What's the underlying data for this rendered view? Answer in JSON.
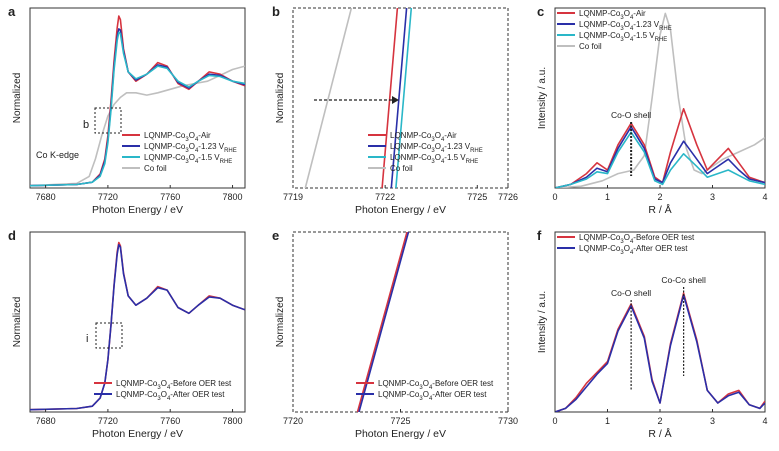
{
  "colors": {
    "red": "#d6343f",
    "blue": "#2a2fa8",
    "cyan": "#2ab7c8",
    "gray": "#bfbfbf",
    "axis": "#333333"
  },
  "chart_data": [
    {
      "panel": "a",
      "type": "line",
      "xlabel": "Photon Energy / eV",
      "ylabel": "Normalized",
      "xlim": [
        7670,
        7808
      ],
      "ylim": [
        0,
        1.55
      ],
      "xticks": [
        "7680",
        "7720",
        "7760",
        "7800"
      ],
      "annotations": {
        "edge": "Co K-edge",
        "box": "b"
      },
      "legend": [
        "LQNMP-Co3O4-Air",
        "LQNMP-Co3O4-1.23 VRHE",
        "LQNMP-Co3O4-1.5 VRHE",
        "Co foil"
      ],
      "series": [
        {
          "name": "LQNMP-Co3O4-Air",
          "color": "red",
          "x": [
            7670,
            7700,
            7710,
            7715,
            7718,
            7720,
            7722,
            7724,
            7726,
            7727,
            7728,
            7730,
            7733,
            7738,
            7745,
            7752,
            7758,
            7765,
            7772,
            7778,
            7785,
            7792,
            7800,
            7808
          ],
          "y": [
            0.02,
            0.03,
            0.05,
            0.12,
            0.25,
            0.45,
            0.75,
            1.1,
            1.38,
            1.48,
            1.45,
            1.2,
            1.0,
            0.92,
            0.98,
            1.08,
            1.05,
            0.9,
            0.85,
            0.92,
            1.0,
            0.98,
            0.92,
            0.88
          ]
        },
        {
          "name": "LQNMP-Co3O4-1.23 VRHE",
          "color": "blue",
          "x": [
            7670,
            7700,
            7710,
            7715,
            7718,
            7720,
            7722,
            7724,
            7726,
            7727,
            7728,
            7730,
            7733,
            7738,
            7745,
            7752,
            7758,
            7765,
            7772,
            7778,
            7785,
            7792,
            7800,
            7808
          ],
          "y": [
            0.02,
            0.03,
            0.05,
            0.11,
            0.23,
            0.41,
            0.7,
            1.05,
            1.3,
            1.37,
            1.36,
            1.18,
            1.0,
            0.93,
            0.98,
            1.06,
            1.04,
            0.91,
            0.86,
            0.92,
            0.98,
            0.97,
            0.92,
            0.89
          ]
        },
        {
          "name": "LQNMP-Co3O4-1.5 VRHE",
          "color": "cyan",
          "x": [
            7670,
            7700,
            7710,
            7715,
            7718,
            7720,
            7722,
            7724,
            7726,
            7727,
            7728,
            7730,
            7733,
            7738,
            7745,
            7752,
            7758,
            7765,
            7772,
            7778,
            7785,
            7792,
            7800,
            7808
          ],
          "y": [
            0.02,
            0.03,
            0.05,
            0.1,
            0.21,
            0.39,
            0.67,
            1.02,
            1.27,
            1.34,
            1.33,
            1.16,
            1.0,
            0.94,
            0.98,
            1.05,
            1.03,
            0.92,
            0.87,
            0.92,
            0.97,
            0.96,
            0.92,
            0.9
          ]
        },
        {
          "name": "Co foil",
          "color": "gray",
          "x": [
            7670,
            7700,
            7708,
            7712,
            7716,
            7720,
            7724,
            7728,
            7732,
            7738,
            7745,
            7752,
            7760,
            7768,
            7776,
            7784,
            7792,
            7800,
            7808
          ],
          "y": [
            0.02,
            0.04,
            0.1,
            0.25,
            0.45,
            0.62,
            0.72,
            0.78,
            0.82,
            0.82,
            0.8,
            0.82,
            0.85,
            0.88,
            0.9,
            0.92,
            0.97,
            1.02,
            1.05
          ]
        }
      ]
    },
    {
      "panel": "b",
      "type": "line",
      "xlabel": "Photon Energy / eV",
      "ylabel": "Normalized",
      "xlim": [
        7719,
        7726
      ],
      "ylim": [
        0,
        1
      ],
      "xticks": [
        "7719",
        "7722",
        "7725",
        "7726"
      ],
      "legend": [
        "LQNMP-Co3O4-Air",
        "LQNMP-Co3O4-1.23 VRHE",
        "LQNMP-Co3O4-1.5 VRHE",
        "Co foil"
      ],
      "series": [
        {
          "name": "LQNMP-Co3O4-Air",
          "color": "red",
          "x": [
            7721.9,
            7722.4
          ],
          "y": [
            0.0,
            1.0
          ]
        },
        {
          "name": "LQNMP-Co3O4-1.23 VRHE",
          "color": "blue",
          "x": [
            7722.2,
            7722.7
          ],
          "y": [
            0.0,
            1.0
          ]
        },
        {
          "name": "LQNMP-Co3O4-1.5 VRHE",
          "color": "cyan",
          "x": [
            7722.35,
            7722.85
          ],
          "y": [
            0.0,
            1.0
          ]
        },
        {
          "name": "Co foil",
          "color": "gray",
          "x": [
            7719.4,
            7720.9
          ],
          "y": [
            0.0,
            1.0
          ]
        }
      ]
    },
    {
      "panel": "c",
      "type": "line",
      "xlabel": "R / Å",
      "ylabel": "Intensity / a.u.",
      "xlim": [
        0,
        4
      ],
      "ylim": [
        0,
        1
      ],
      "xticks": [
        "0",
        "1",
        "2",
        "3",
        "4"
      ],
      "annotations": {
        "shell": "Co-O shell"
      },
      "legend": [
        "LQNMP-Co3O4-Air",
        "LQNMP-Co3O4-1.23 VRHE",
        "LQNMP-Co3O4-1.5 VRHE",
        "Co foil"
      ],
      "series": [
        {
          "name": "LQNMP-Co3O4-Air",
          "color": "red",
          "x": [
            0,
            0.3,
            0.6,
            0.8,
            1.0,
            1.2,
            1.45,
            1.7,
            1.9,
            2.05,
            2.2,
            2.45,
            2.7,
            2.9,
            3.1,
            3.3,
            3.5,
            3.7,
            4.0
          ],
          "y": [
            0.0,
            0.02,
            0.08,
            0.14,
            0.1,
            0.24,
            0.36,
            0.24,
            0.06,
            0.03,
            0.2,
            0.44,
            0.24,
            0.1,
            0.16,
            0.22,
            0.14,
            0.06,
            0.03
          ]
        },
        {
          "name": "LQNMP-Co3O4-1.23 VRHE",
          "color": "blue",
          "x": [
            0,
            0.3,
            0.6,
            0.8,
            1.0,
            1.2,
            1.45,
            1.7,
            1.9,
            2.05,
            2.2,
            2.45,
            2.7,
            2.9,
            3.1,
            3.3,
            3.5,
            3.7,
            4.0
          ],
          "y": [
            0.0,
            0.02,
            0.06,
            0.11,
            0.09,
            0.22,
            0.34,
            0.22,
            0.05,
            0.03,
            0.14,
            0.26,
            0.16,
            0.08,
            0.12,
            0.16,
            0.1,
            0.05,
            0.03
          ]
        },
        {
          "name": "LQNMP-Co3O4-1.5 VRHE",
          "color": "cyan",
          "x": [
            0,
            0.3,
            0.6,
            0.8,
            1.0,
            1.2,
            1.45,
            1.7,
            1.9,
            2.05,
            2.2,
            2.45,
            2.7,
            2.9,
            3.1,
            3.3,
            3.5,
            3.7,
            4.0
          ],
          "y": [
            0.0,
            0.02,
            0.05,
            0.09,
            0.08,
            0.2,
            0.31,
            0.2,
            0.04,
            0.02,
            0.1,
            0.19,
            0.12,
            0.06,
            0.08,
            0.1,
            0.07,
            0.04,
            0.02
          ]
        },
        {
          "name": "Co foil",
          "color": "gray",
          "x": [
            0,
            0.5,
            0.9,
            1.2,
            1.5,
            1.7,
            1.85,
            2.0,
            2.1,
            2.2,
            2.35,
            2.5,
            2.65,
            2.8,
            3.0,
            3.2,
            3.5,
            3.8,
            4.0
          ],
          "y": [
            0.0,
            0.01,
            0.04,
            0.08,
            0.1,
            0.18,
            0.5,
            0.85,
            0.97,
            0.88,
            0.5,
            0.22,
            0.1,
            0.08,
            0.12,
            0.16,
            0.2,
            0.24,
            0.28
          ]
        }
      ]
    },
    {
      "panel": "d",
      "type": "line",
      "xlabel": "Photon Energy / eV",
      "ylabel": "Normalized",
      "xlim": [
        7670,
        7808
      ],
      "ylim": [
        0,
        1.55
      ],
      "xticks": [
        "7680",
        "7720",
        "7760",
        "7800"
      ],
      "annotations": {
        "box": "i"
      },
      "legend": [
        "LQNMP-Co3O4-Before OER test",
        "LQNMP-Co3O4-After OER test"
      ],
      "series": [
        {
          "name": "LQNMP-Co3O4-Before OER test",
          "color": "red",
          "x": [
            7670,
            7700,
            7710,
            7715,
            7718,
            7720,
            7722,
            7724,
            7726,
            7727,
            7728,
            7730,
            7733,
            7738,
            7745,
            7752,
            7758,
            7765,
            7772,
            7778,
            7785,
            7792,
            7800,
            7808
          ],
          "y": [
            0.02,
            0.03,
            0.05,
            0.12,
            0.25,
            0.45,
            0.75,
            1.1,
            1.38,
            1.46,
            1.43,
            1.2,
            1.0,
            0.92,
            0.98,
            1.08,
            1.05,
            0.9,
            0.85,
            0.92,
            1.0,
            0.98,
            0.92,
            0.88
          ]
        },
        {
          "name": "LQNMP-Co3O4-After OER test",
          "color": "blue",
          "x": [
            7670,
            7700,
            7710,
            7715,
            7718,
            7720,
            7722,
            7724,
            7726,
            7727,
            7728,
            7730,
            7733,
            7738,
            7745,
            7752,
            7758,
            7765,
            7772,
            7778,
            7785,
            7792,
            7800,
            7808
          ],
          "y": [
            0.02,
            0.03,
            0.05,
            0.12,
            0.25,
            0.45,
            0.75,
            1.09,
            1.36,
            1.44,
            1.42,
            1.19,
            1.0,
            0.92,
            0.98,
            1.07,
            1.05,
            0.9,
            0.85,
            0.92,
            0.99,
            0.98,
            0.92,
            0.88
          ]
        }
      ]
    },
    {
      "panel": "e",
      "type": "line",
      "xlabel": "Photon Energy / eV",
      "ylabel": "Normalized",
      "xlim": [
        7720,
        7730
      ],
      "ylim": [
        0,
        1
      ],
      "xticks": [
        "7720",
        "7725",
        "7730"
      ],
      "legend": [
        "LQNMP-Co3O4-Before OER test",
        "LQNMP-Co3O4-After OER test"
      ],
      "series": [
        {
          "name": "LQNMP-Co3O4-Before OER test",
          "color": "red",
          "x": [
            7723.0,
            7725.3
          ],
          "y": [
            0.0,
            1.0
          ]
        },
        {
          "name": "LQNMP-Co3O4-After OER test",
          "color": "blue",
          "x": [
            7723.07,
            7725.37
          ],
          "y": [
            0.0,
            1.0
          ]
        }
      ]
    },
    {
      "panel": "f",
      "type": "line",
      "xlabel": "R / Å",
      "ylabel": "Intensity / a.u.",
      "xlim": [
        0,
        4
      ],
      "ylim": [
        0,
        1
      ],
      "xticks": [
        "0",
        "1",
        "2",
        "3",
        "4"
      ],
      "annotations": {
        "shell1": "Co-O shell",
        "shell2": "Co-Co shell"
      },
      "legend": [
        "LQNMP-Co3O4-Before OER test",
        "LQNMP-Co3O4-After OER test"
      ],
      "series": [
        {
          "name": "LQNMP-Co3O4-Before OER test",
          "color": "red",
          "x": [
            0,
            0.2,
            0.4,
            0.6,
            0.8,
            1.0,
            1.2,
            1.45,
            1.7,
            1.85,
            2.0,
            2.2,
            2.45,
            2.7,
            2.9,
            3.1,
            3.3,
            3.5,
            3.7,
            3.9,
            4.0
          ],
          "y": [
            0.0,
            0.02,
            0.08,
            0.16,
            0.22,
            0.28,
            0.46,
            0.6,
            0.42,
            0.18,
            0.05,
            0.38,
            0.66,
            0.4,
            0.12,
            0.05,
            0.1,
            0.12,
            0.04,
            0.02,
            0.06
          ]
        },
        {
          "name": "LQNMP-Co3O4-After OER test",
          "color": "blue",
          "x": [
            0,
            0.2,
            0.4,
            0.6,
            0.8,
            1.0,
            1.2,
            1.45,
            1.7,
            1.85,
            2.0,
            2.2,
            2.45,
            2.7,
            2.9,
            3.1,
            3.3,
            3.5,
            3.7,
            3.9,
            4.0
          ],
          "y": [
            0.0,
            0.02,
            0.07,
            0.14,
            0.21,
            0.27,
            0.45,
            0.59,
            0.41,
            0.17,
            0.05,
            0.37,
            0.65,
            0.39,
            0.12,
            0.05,
            0.09,
            0.11,
            0.04,
            0.02,
            0.05
          ]
        }
      ]
    }
  ]
}
